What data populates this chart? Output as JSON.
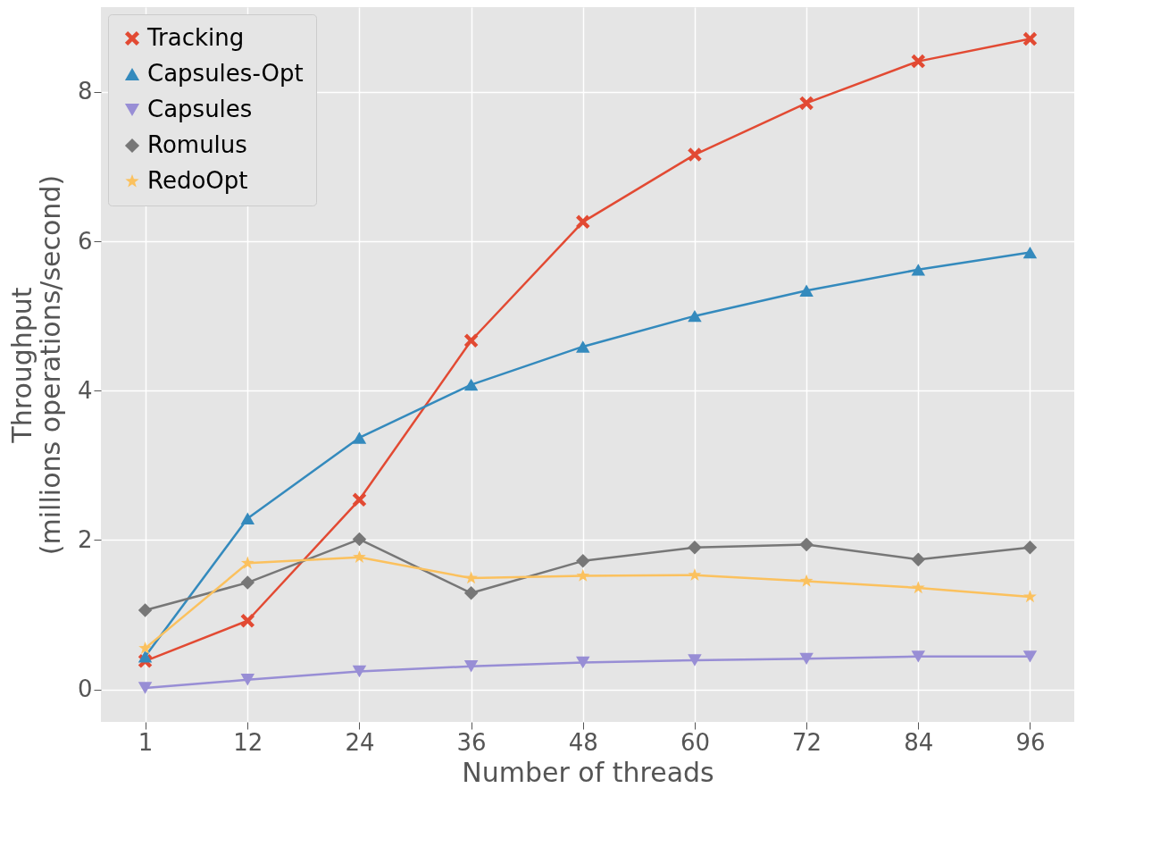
{
  "chart_data": {
    "type": "line",
    "xlabel": "Number of threads",
    "ylabel": "Throughput\n(millions operations/second)",
    "x": [
      1,
      12,
      24,
      36,
      48,
      60,
      72,
      84,
      96
    ],
    "xlim": [
      -3.75,
      100.75
    ],
    "xticks": [
      1,
      12,
      24,
      36,
      48,
      60,
      72,
      84,
      96
    ],
    "ylim": [
      -0.435,
      9.135
    ],
    "yticks": [
      0,
      2,
      4,
      6,
      8
    ],
    "grid": true,
    "legend": "top left",
    "line_style": "solid",
    "series": [
      {
        "name": "Tracking",
        "color": "#e24a33",
        "marker": "cross",
        "values": [
          0.38,
          0.92,
          2.54,
          4.67,
          6.26,
          7.16,
          7.85,
          8.41,
          8.71
        ]
      },
      {
        "name": "Capsules-Opt",
        "color": "#348abd",
        "marker": "triangle",
        "values": [
          0.44,
          2.29,
          3.37,
          4.08,
          4.59,
          5.0,
          5.34,
          5.62,
          5.85
        ]
      },
      {
        "name": "Capsules",
        "color": "#988ed5",
        "marker": "triangle-down",
        "values": [
          0.02,
          0.13,
          0.24,
          0.31,
          0.36,
          0.39,
          0.41,
          0.44,
          0.44
        ]
      },
      {
        "name": "Romulus",
        "color": "#777777",
        "marker": "diamond",
        "values": [
          1.06,
          1.43,
          2.01,
          1.29,
          1.72,
          1.9,
          1.94,
          1.74,
          1.9
        ]
      },
      {
        "name": "RedoOpt",
        "color": "#fbc15e",
        "marker": "star",
        "values": [
          0.55,
          1.69,
          1.77,
          1.49,
          1.52,
          1.53,
          1.45,
          1.36,
          1.24
        ]
      }
    ]
  }
}
